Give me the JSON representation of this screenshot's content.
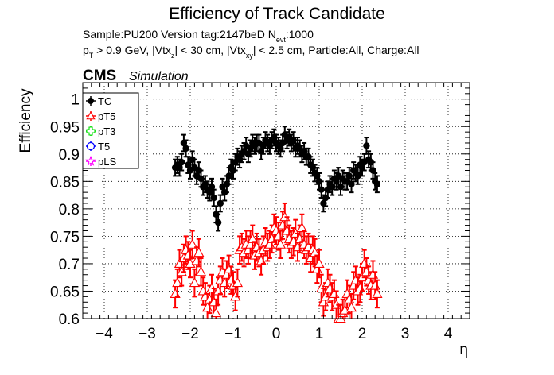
{
  "header": {
    "title": "Efficiency of Track Candidate",
    "info_line1": "Sample:PU200   Version tag:2147beD  N",
    "info_line1_sub": "evt",
    "info_line1_tail": ":1000",
    "info_line2_parts": [
      {
        "t": "p",
        "sub": false
      },
      {
        "t": "T",
        "sub": true
      },
      {
        "t": " > 0.9 GeV, |Vtx",
        "sub": false
      },
      {
        "t": "z",
        "sub": true
      },
      {
        "t": "| < 30 cm, |Vtx",
        "sub": false
      },
      {
        "t": "xy",
        "sub": true
      },
      {
        "t": "| < 2.5 cm, Particle:All, Charge:All",
        "sub": false
      }
    ],
    "cms_label": "CMS",
    "sim_label": "Simulation"
  },
  "chart_data": {
    "type": "scatter",
    "title": "Efficiency of Track Candidate",
    "xlabel": "η",
    "ylabel": "Efficiency",
    "xlim": [
      -4.5,
      4.5
    ],
    "ylim": [
      0.6,
      1.03
    ],
    "xticks": [
      -4,
      -3,
      -2,
      -1,
      0,
      1,
      2,
      3,
      4
    ],
    "yticks": [
      0.6,
      0.65,
      0.7,
      0.75,
      0.8,
      0.85,
      0.9,
      0.95,
      1
    ],
    "ytick_labels": [
      "0.6",
      "0.65",
      "0.7",
      "0.75",
      "0.8",
      "0.85",
      "0.9",
      "0.95",
      "1"
    ],
    "grid": true,
    "legend_position": "top-left",
    "series": [
      {
        "name": "TC",
        "color": "#000000",
        "marker": "filled-circle",
        "x": [
          -2.35,
          -2.3,
          -2.25,
          -2.2,
          -2.15,
          -2.1,
          -2.05,
          -2.0,
          -1.95,
          -1.9,
          -1.85,
          -1.8,
          -1.75,
          -1.7,
          -1.65,
          -1.6,
          -1.55,
          -1.5,
          -1.45,
          -1.4,
          -1.35,
          -1.3,
          -1.25,
          -1.2,
          -1.15,
          -1.1,
          -1.05,
          -1.0,
          -0.95,
          -0.9,
          -0.85,
          -0.8,
          -0.75,
          -0.7,
          -0.65,
          -0.6,
          -0.55,
          -0.5,
          -0.45,
          -0.4,
          -0.35,
          -0.3,
          -0.25,
          -0.2,
          -0.15,
          -0.1,
          -0.05,
          0.0,
          0.05,
          0.1,
          0.15,
          0.2,
          0.25,
          0.3,
          0.35,
          0.4,
          0.45,
          0.5,
          0.55,
          0.6,
          0.65,
          0.7,
          0.75,
          0.8,
          0.85,
          0.9,
          0.95,
          1.0,
          1.05,
          1.1,
          1.15,
          1.2,
          1.25,
          1.3,
          1.35,
          1.4,
          1.45,
          1.5,
          1.55,
          1.6,
          1.65,
          1.7,
          1.75,
          1.8,
          1.85,
          1.9,
          1.95,
          2.0,
          2.05,
          2.1,
          2.15,
          2.2,
          2.25,
          2.3,
          2.35
        ],
        "y": [
          0.875,
          0.88,
          0.875,
          0.885,
          0.92,
          0.91,
          0.88,
          0.87,
          0.89,
          0.875,
          0.86,
          0.87,
          0.855,
          0.84,
          0.845,
          0.835,
          0.83,
          0.84,
          0.82,
          0.79,
          0.775,
          0.81,
          0.84,
          0.83,
          0.845,
          0.86,
          0.875,
          0.87,
          0.885,
          0.895,
          0.89,
          0.9,
          0.905,
          0.915,
          0.9,
          0.91,
          0.92,
          0.915,
          0.92,
          0.92,
          0.905,
          0.915,
          0.925,
          0.92,
          0.915,
          0.925,
          0.93,
          0.92,
          0.915,
          0.91,
          0.92,
          0.935,
          0.925,
          0.93,
          0.92,
          0.925,
          0.91,
          0.915,
          0.91,
          0.9,
          0.905,
          0.895,
          0.895,
          0.88,
          0.875,
          0.865,
          0.86,
          0.85,
          0.835,
          0.81,
          0.82,
          0.835,
          0.845,
          0.84,
          0.855,
          0.85,
          0.86,
          0.84,
          0.855,
          0.85,
          0.85,
          0.86,
          0.845,
          0.87,
          0.865,
          0.86,
          0.88,
          0.875,
          0.885,
          0.915,
          0.89,
          0.885,
          0.87,
          0.85,
          0.845
        ],
        "yerr": 0.015
      },
      {
        "name": "pT5",
        "color": "#ff0000",
        "marker": "open-triangle",
        "x": [
          -2.35,
          -2.3,
          -2.25,
          -2.2,
          -2.15,
          -2.1,
          -2.05,
          -2.0,
          -1.95,
          -1.9,
          -1.85,
          -1.8,
          -1.75,
          -1.7,
          -1.65,
          -1.6,
          -1.55,
          -1.5,
          -1.45,
          -1.4,
          -1.35,
          -1.3,
          -1.25,
          -1.2,
          -1.15,
          -1.1,
          -1.05,
          -1.0,
          -0.95,
          -0.9,
          -0.85,
          -0.8,
          -0.75,
          -0.7,
          -0.65,
          -0.6,
          -0.55,
          -0.5,
          -0.45,
          -0.4,
          -0.35,
          -0.3,
          -0.25,
          -0.2,
          -0.15,
          -0.1,
          -0.05,
          0.0,
          0.05,
          0.1,
          0.15,
          0.2,
          0.25,
          0.3,
          0.35,
          0.4,
          0.45,
          0.5,
          0.55,
          0.6,
          0.65,
          0.7,
          0.75,
          0.8,
          0.85,
          0.9,
          0.95,
          1.0,
          1.05,
          1.1,
          1.15,
          1.2,
          1.25,
          1.3,
          1.35,
          1.4,
          1.45,
          1.5,
          1.55,
          1.6,
          1.65,
          1.7,
          1.75,
          1.8,
          1.85,
          1.9,
          1.95,
          2.0,
          2.05,
          2.1,
          2.15,
          2.2,
          2.25,
          2.3,
          2.35
        ],
        "y": [
          0.645,
          0.665,
          0.7,
          0.685,
          0.71,
          0.725,
          0.715,
          0.7,
          0.735,
          0.665,
          0.705,
          0.72,
          0.685,
          0.65,
          0.64,
          0.62,
          0.635,
          0.655,
          0.63,
          0.61,
          0.65,
          0.67,
          0.685,
          0.665,
          0.68,
          0.69,
          0.67,
          0.66,
          0.64,
          0.665,
          0.725,
          0.73,
          0.72,
          0.735,
          0.725,
          0.735,
          0.745,
          0.715,
          0.73,
          0.72,
          0.705,
          0.725,
          0.74,
          0.73,
          0.735,
          0.745,
          0.765,
          0.76,
          0.75,
          0.735,
          0.77,
          0.785,
          0.76,
          0.745,
          0.735,
          0.74,
          0.755,
          0.73,
          0.745,
          0.765,
          0.735,
          0.725,
          0.73,
          0.71,
          0.725,
          0.72,
          0.69,
          0.7,
          0.655,
          0.63,
          0.64,
          0.665,
          0.655,
          0.64,
          0.645,
          0.625,
          0.6,
          0.6,
          0.61,
          0.615,
          0.645,
          0.635,
          0.62,
          0.66,
          0.67,
          0.65,
          0.655,
          0.675,
          0.7,
          0.685,
          0.67,
          0.66,
          0.68,
          0.66,
          0.645
        ],
        "yerr": 0.025
      },
      {
        "name": "pT3",
        "color": "#00dd00",
        "marker": "open-cross",
        "x": [],
        "y": []
      },
      {
        "name": "T5",
        "color": "#0000ff",
        "marker": "open-circle",
        "x": [],
        "y": []
      },
      {
        "name": "pLS",
        "color": "#ff00ff",
        "marker": "open-star",
        "x": [],
        "y": []
      }
    ]
  }
}
